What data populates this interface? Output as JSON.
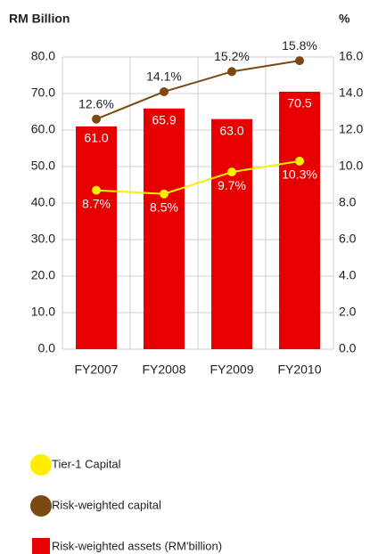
{
  "chart_data": {
    "type": "bar",
    "y_label": "RM Billion",
    "y2_label": "%",
    "categories": [
      "FY2007",
      "FY2008",
      "FY2009",
      "FY2010"
    ],
    "series": [
      {
        "name": "Risk-weighted assets (RM'billion)",
        "type": "bar",
        "color": "#e60000",
        "values": [
          61.0,
          65.9,
          63.0,
          70.5
        ],
        "value_labels": [
          "61.0",
          "65.9",
          "63.0",
          "70.5"
        ]
      },
      {
        "name": "Tier-1 Capital",
        "type": "line",
        "axis": "y2",
        "color": "#ffee00",
        "values": [
          8.7,
          8.5,
          9.7,
          10.3
        ],
        "value_labels": [
          "8.7%",
          "8.5%",
          "9.7%",
          "10.3%"
        ]
      },
      {
        "name": "Risk-weighted capital",
        "type": "line",
        "axis": "y2",
        "color": "#7a4a12",
        "values": [
          12.6,
          14.1,
          15.2,
          15.8
        ],
        "value_labels": [
          "12.6%",
          "14.1%",
          "15.2%",
          "15.8%"
        ]
      }
    ],
    "ylim": [
      0,
      80
    ],
    "yticks": [
      {
        "value": 0,
        "label": "0.0"
      },
      {
        "value": 10,
        "label": "10.0"
      },
      {
        "value": 20,
        "label": "20.0"
      },
      {
        "value": 30,
        "label": "30.0"
      },
      {
        "value": 40,
        "label": "40.0"
      },
      {
        "value": 50,
        "label": "50.0"
      },
      {
        "value": 60,
        "label": "60.0"
      },
      {
        "value": 70,
        "label": "70.0"
      },
      {
        "value": 80,
        "label": "80.0"
      }
    ],
    "y2lim": [
      0,
      16
    ],
    "y2ticks": [
      {
        "value": 0,
        "label": "0.0"
      },
      {
        "value": 2,
        "label": "2.0"
      },
      {
        "value": 4,
        "label": "4.0"
      },
      {
        "value": 6,
        "label": "6.0"
      },
      {
        "value": 8,
        "label": "8.0"
      },
      {
        "value": 10,
        "label": "10.0"
      },
      {
        "value": 12,
        "label": "12.0"
      },
      {
        "value": 14,
        "label": "14.0"
      },
      {
        "value": 16,
        "label": "16.0"
      }
    ],
    "grid": true
  }
}
